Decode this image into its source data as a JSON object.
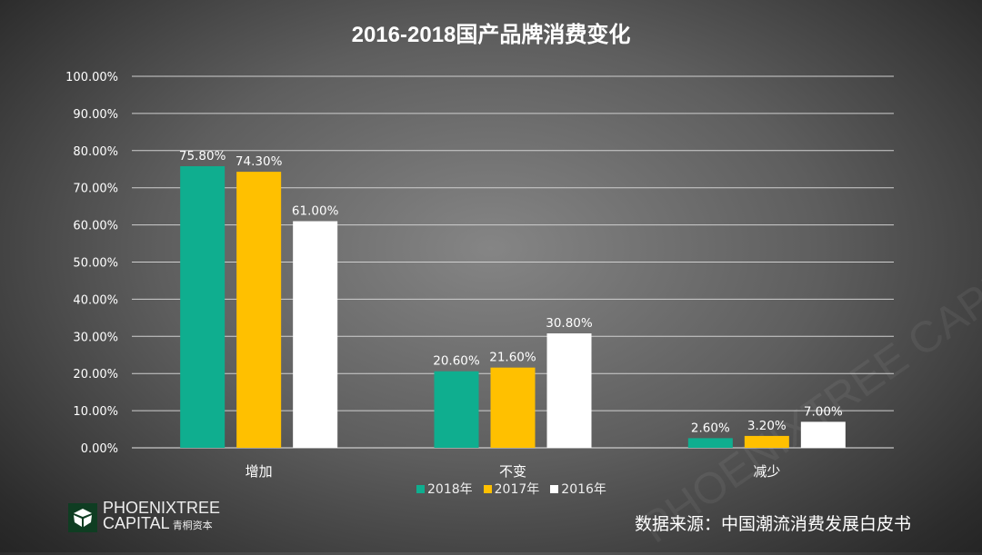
{
  "chart_data": {
    "type": "bar",
    "title": "2016-2018国产品牌消费变化",
    "categories": [
      "增加",
      "不变",
      "减少"
    ],
    "series": [
      {
        "name": "2018年",
        "color": "#0fae8f",
        "values": [
          75.8,
          20.6,
          2.6
        ],
        "labels": [
          "75.80%",
          "20.60%",
          "2.60%"
        ]
      },
      {
        "name": "2017年",
        "color": "#ffc000",
        "values": [
          74.3,
          21.6,
          3.2
        ],
        "labels": [
          "74.30%",
          "21.60%",
          "3.20%"
        ]
      },
      {
        "name": "2016年",
        "color": "#ffffff",
        "values": [
          61.0,
          30.8,
          7.0
        ],
        "labels": [
          "61.00%",
          "30.80%",
          "7.00%"
        ]
      }
    ],
    "ylim": [
      0,
      100
    ],
    "yticks": [
      "0.00%",
      "10.00%",
      "20.00%",
      "30.00%",
      "40.00%",
      "50.00%",
      "60.00%",
      "70.00%",
      "80.00%",
      "90.00%",
      "100.00%"
    ],
    "grid": true,
    "legend": "bottom"
  },
  "logo": {
    "line1": "PHOENIXTREE",
    "line2": "CAPITAL",
    "cn": "青桐资本"
  },
  "watermark": "PHOENIXTREE CAPITAL 青桐资本",
  "source": "数据来源：中国潮流消费发展白皮书"
}
